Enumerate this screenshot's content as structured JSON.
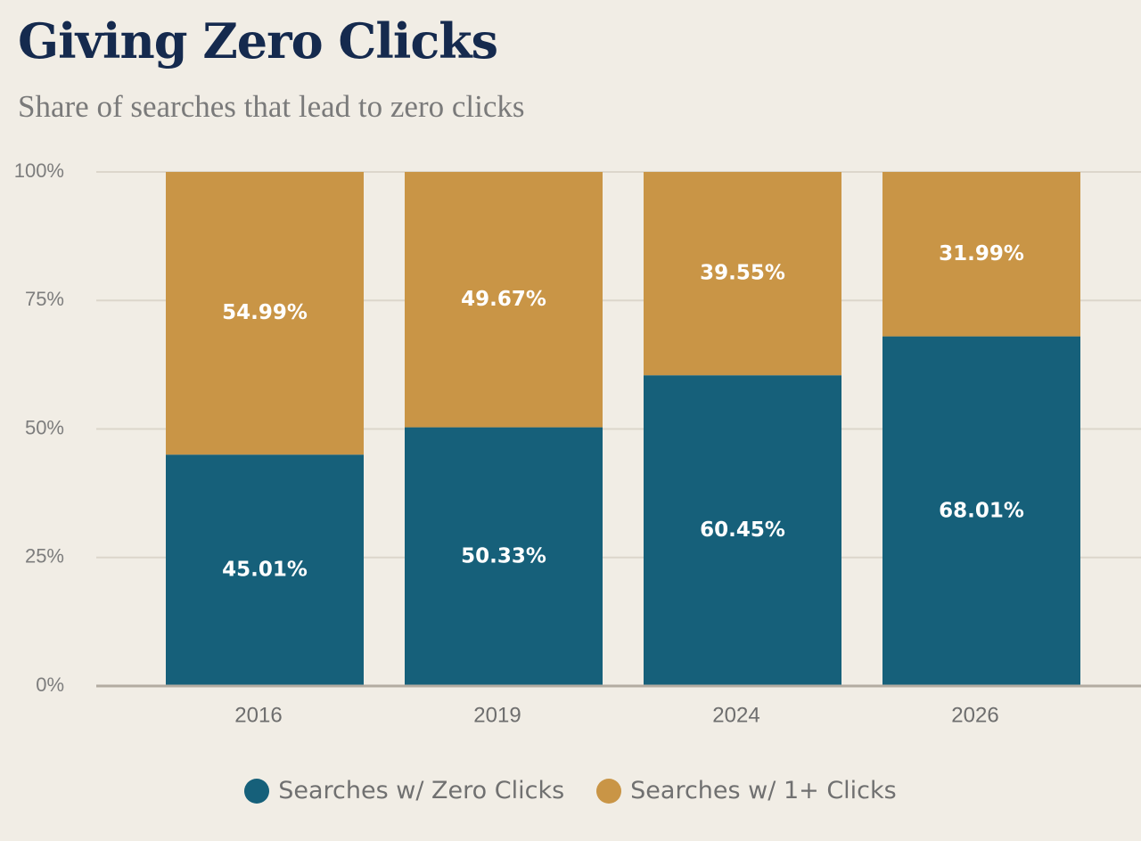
{
  "chart_data": {
    "type": "bar",
    "stacked": true,
    "title": "Giving Zero Clicks",
    "subtitle": "Share of searches that lead to zero clicks",
    "categories": [
      "2016",
      "2019",
      "2024",
      "2026"
    ],
    "series": [
      {
        "name": "Searches w/ Zero Clicks",
        "color": "#16607a",
        "values": [
          45.01,
          50.33,
          60.45,
          68.01
        ],
        "labels": [
          "45.01%",
          "50.33%",
          "60.45%",
          "68.01%"
        ]
      },
      {
        "name": "Searches w/ 1+ Clicks",
        "color": "#c99546",
        "values": [
          54.99,
          49.67,
          39.55,
          31.99
        ],
        "labels": [
          "54.99%",
          "49.67%",
          "39.55%",
          "31.99%"
        ]
      }
    ],
    "ylim": [
      0,
      100
    ],
    "yticks": [
      0,
      25,
      50,
      75,
      100
    ],
    "ytick_labels": [
      "0%",
      "25%",
      "50%",
      "75%",
      "100%"
    ],
    "grid": true,
    "legend_position": "bottom-center"
  }
}
